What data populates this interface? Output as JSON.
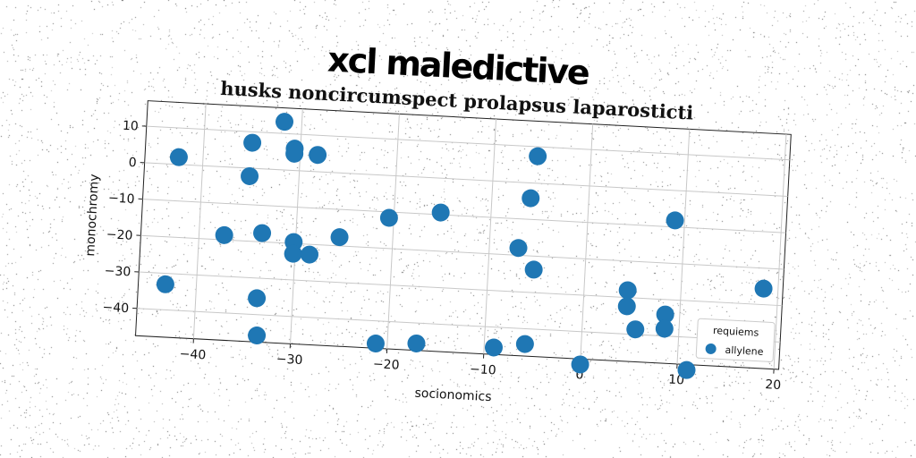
{
  "page": {
    "title": "xcl maledictive"
  },
  "chart_data": {
    "type": "scatter",
    "title": "husks noncircumspect prolapsus laparosticti",
    "xlabel": "socionomics",
    "ylabel": "monochromy",
    "xlim": [
      -46,
      20.5
    ],
    "ylim": [
      -47.5,
      17
    ],
    "xticks": [
      -40,
      -30,
      -20,
      -10,
      0,
      10,
      20
    ],
    "xtick_labels": [
      "−40",
      "−30",
      "−20",
      "−10",
      "0",
      "10",
      "20"
    ],
    "yticks": [
      -40,
      -30,
      -20,
      -10,
      0,
      10
    ],
    "ytick_labels": [
      "−40",
      "−30",
      "−20",
      "−10",
      "0",
      "10"
    ],
    "grid": true,
    "legend": {
      "title": "requiems",
      "placement": "bottom-right"
    },
    "series": [
      {
        "name": "allylene",
        "color": "#1f77b4",
        "points": [
          [
            -42.5,
            2.0
          ],
          [
            -43.2,
            -33.0
          ],
          [
            -37.4,
            -18.7
          ],
          [
            -35.0,
            7.0
          ],
          [
            -35.1,
            -2.2
          ],
          [
            -33.5,
            -17.6
          ],
          [
            -33.7,
            -35.5
          ],
          [
            -33.5,
            -45.7
          ],
          [
            -31.8,
            13.2
          ],
          [
            -30.6,
            6.0
          ],
          [
            -30.6,
            4.6
          ],
          [
            -30.2,
            -19.6
          ],
          [
            -30.2,
            -22.8
          ],
          [
            -28.2,
            4.6
          ],
          [
            -28.5,
            -22.8
          ],
          [
            -25.5,
            -17.6
          ],
          [
            -20.5,
            -11.6
          ],
          [
            -21.2,
            -46.2
          ],
          [
            -17.0,
            -45.6
          ],
          [
            -15.2,
            -9.4
          ],
          [
            -9.0,
            -45.6
          ],
          [
            -7.0,
            -18.0
          ],
          [
            -6.0,
            -4.2
          ],
          [
            -5.5,
            7.4
          ],
          [
            -5.8,
            -44.2
          ],
          [
            -5.3,
            -23.7
          ],
          [
            0.0,
            -49.0
          ],
          [
            4.5,
            -28.0
          ],
          [
            4.5,
            -32.4
          ],
          [
            5.5,
            -38.6
          ],
          [
            8.5,
            -34.1
          ],
          [
            8.5,
            -38.0
          ],
          [
            9.0,
            -8.2
          ],
          [
            11.0,
            -49.0
          ],
          [
            18.5,
            -25.6
          ]
        ]
      }
    ]
  }
}
